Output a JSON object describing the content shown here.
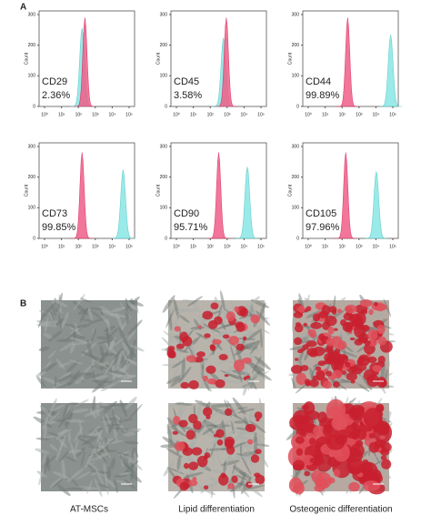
{
  "panel_a": {
    "label": "A",
    "y_axis_label": "Count",
    "y_ticks": [
      "0",
      "100",
      "200",
      "300"
    ],
    "x_ticks": [
      "10⁰",
      "10¹",
      "10²",
      "10³",
      "10⁴",
      "10⁵"
    ],
    "plots": [
      {
        "marker": "CD29",
        "percent": "2.36%"
      },
      {
        "marker": "CD45",
        "percent": "3.58%"
      },
      {
        "marker": "CD44",
        "percent": "99.89%"
      },
      {
        "marker": "CD73",
        "percent": "99.85%"
      },
      {
        "marker": "CD90",
        "percent": "95.71%"
      },
      {
        "marker": "CD105",
        "percent": "97.96%"
      }
    ]
  },
  "panel_b": {
    "label": "B",
    "columns": [
      "AT-MSCs",
      "Lipid differentiation",
      "Osteogenic differentiation"
    ]
  }
}
